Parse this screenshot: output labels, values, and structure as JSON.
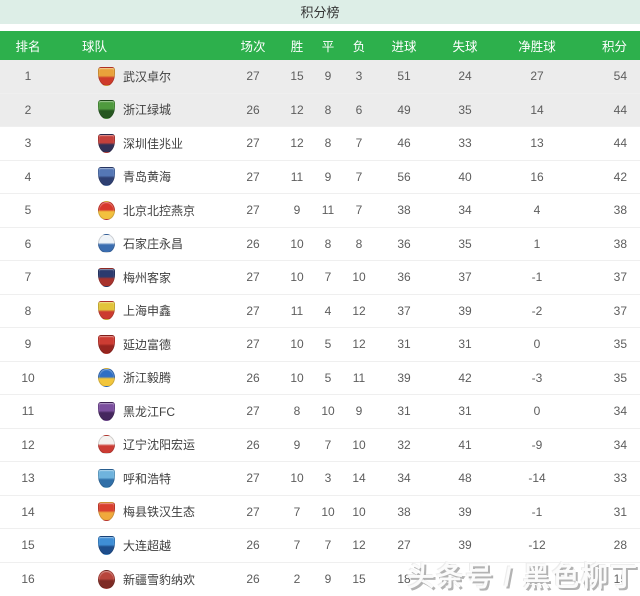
{
  "title": "积分榜",
  "watermark": "头条号 / 黑色柳丁",
  "colors": {
    "title_bg": "#ddeee7",
    "header_bg": "#2db04c",
    "header_text": "#ffffff",
    "highlight_row_bg": "#ececec"
  },
  "table": {
    "columns": [
      "排名",
      "球队",
      "场次",
      "胜",
      "平",
      "负",
      "进球",
      "失球",
      "净胜球",
      "积分"
    ],
    "rows": [
      {
        "rank": "1",
        "team": "武汉卓尔",
        "played": "27",
        "win": "15",
        "draw": "9",
        "loss": "3",
        "gf": "51",
        "ga": "24",
        "gd": "27",
        "pts": "54",
        "highlight": true,
        "badge": {
          "shape": "shield",
          "c1": "#e9a13b",
          "c2": "#cf3a2a"
        }
      },
      {
        "rank": "2",
        "team": "浙江绿城",
        "played": "26",
        "win": "12",
        "draw": "8",
        "loss": "6",
        "gf": "49",
        "ga": "35",
        "gd": "14",
        "pts": "44",
        "highlight": true,
        "badge": {
          "shape": "shield",
          "c1": "#4f9a3e",
          "c2": "#25571f"
        }
      },
      {
        "rank": "3",
        "team": "深圳佳兆业",
        "played": "27",
        "win": "12",
        "draw": "8",
        "loss": "7",
        "gf": "46",
        "ga": "33",
        "gd": "13",
        "pts": "44",
        "highlight": false,
        "badge": {
          "shape": "shield",
          "c1": "#c4403c",
          "c2": "#323057"
        }
      },
      {
        "rank": "4",
        "team": "青岛黄海",
        "played": "27",
        "win": "11",
        "draw": "9",
        "loss": "7",
        "gf": "56",
        "ga": "40",
        "gd": "16",
        "pts": "42",
        "highlight": false,
        "badge": {
          "shape": "shield",
          "c1": "#5577b5",
          "c2": "#2e3f72"
        }
      },
      {
        "rank": "5",
        "team": "北京北控燕京",
        "played": "27",
        "win": "9",
        "draw": "11",
        "loss": "7",
        "gf": "38",
        "ga": "34",
        "gd": "4",
        "pts": "38",
        "highlight": false,
        "badge": {
          "shape": "circle",
          "c1": "#d8382c",
          "c2": "#f3c13e"
        }
      },
      {
        "rank": "6",
        "team": "石家庄永昌",
        "played": "26",
        "win": "10",
        "draw": "8",
        "loss": "8",
        "gf": "36",
        "ga": "35",
        "gd": "1",
        "pts": "38",
        "highlight": false,
        "badge": {
          "shape": "circle",
          "c1": "#eef3f8",
          "c2": "#3a6db0"
        }
      },
      {
        "rank": "7",
        "team": "梅州客家",
        "played": "27",
        "win": "10",
        "draw": "7",
        "loss": "10",
        "gf": "36",
        "ga": "37",
        "gd": "-1",
        "pts": "37",
        "highlight": false,
        "badge": {
          "shape": "shield",
          "c1": "#2c3a6e",
          "c2": "#a8322c"
        }
      },
      {
        "rank": "8",
        "team": "上海申鑫",
        "played": "27",
        "win": "11",
        "draw": "4",
        "loss": "12",
        "gf": "37",
        "ga": "39",
        "gd": "-2",
        "pts": "37",
        "highlight": false,
        "badge": {
          "shape": "shield",
          "c1": "#e3c43a",
          "c2": "#cc3b2f"
        }
      },
      {
        "rank": "9",
        "team": "延边富德",
        "played": "27",
        "win": "10",
        "draw": "5",
        "loss": "12",
        "gf": "31",
        "ga": "31",
        "gd": "0",
        "pts": "35",
        "highlight": false,
        "badge": {
          "shape": "shield",
          "c1": "#cc3c33",
          "c2": "#97241f"
        }
      },
      {
        "rank": "10",
        "team": "浙江毅腾",
        "played": "26",
        "win": "10",
        "draw": "5",
        "loss": "11",
        "gf": "39",
        "ga": "42",
        "gd": "-3",
        "pts": "35",
        "highlight": false,
        "badge": {
          "shape": "circle",
          "c1": "#2f6fc4",
          "c2": "#f2c63c"
        }
      },
      {
        "rank": "11",
        "team": "黑龙江FC",
        "played": "27",
        "win": "8",
        "draw": "10",
        "loss": "9",
        "gf": "31",
        "ga": "31",
        "gd": "0",
        "pts": "34",
        "highlight": false,
        "badge": {
          "shape": "shield",
          "c1": "#7b4f9e",
          "c2": "#45265e"
        }
      },
      {
        "rank": "12",
        "team": "辽宁沈阳宏运",
        "played": "26",
        "win": "9",
        "draw": "7",
        "loss": "10",
        "gf": "32",
        "ga": "41",
        "gd": "-9",
        "pts": "34",
        "highlight": false,
        "badge": {
          "shape": "circle",
          "c1": "#f4f1ee",
          "c2": "#cc3b33"
        }
      },
      {
        "rank": "13",
        "team": "呼和浩特",
        "played": "27",
        "win": "10",
        "draw": "3",
        "loss": "14",
        "gf": "34",
        "ga": "48",
        "gd": "-14",
        "pts": "33",
        "highlight": false,
        "badge": {
          "shape": "shield",
          "c1": "#6fb3dd",
          "c2": "#2f6fa8"
        }
      },
      {
        "rank": "14",
        "team": "梅县铁汉生态",
        "played": "27",
        "win": "7",
        "draw": "10",
        "loss": "10",
        "gf": "38",
        "ga": "39",
        "gd": "-1",
        "pts": "31",
        "highlight": false,
        "badge": {
          "shape": "shield",
          "c1": "#d9402f",
          "c2": "#f0a93c"
        }
      },
      {
        "rank": "15",
        "team": "大连超越",
        "played": "26",
        "win": "7",
        "draw": "7",
        "loss": "12",
        "gf": "27",
        "ga": "39",
        "gd": "-12",
        "pts": "28",
        "highlight": false,
        "badge": {
          "shape": "shield",
          "c1": "#3f8ed6",
          "c2": "#1d4d8c"
        }
      },
      {
        "rank": "16",
        "team": "新疆雪豹纳欢",
        "played": "26",
        "win": "2",
        "draw": "9",
        "loss": "15",
        "gf": "18",
        "ga": "",
        "gd": "",
        "pts": "15",
        "highlight": false,
        "badge": {
          "shape": "circle",
          "c1": "#b8453c",
          "c2": "#7e2a24"
        }
      }
    ]
  }
}
